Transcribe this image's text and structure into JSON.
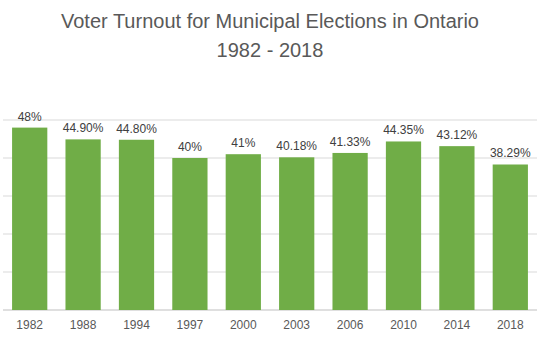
{
  "chart_data": {
    "type": "bar",
    "title": "Voter Turnout for Municipal Elections in Ontario",
    "subtitle": "1982 - 2018",
    "categories": [
      "1982",
      "1988",
      "1994",
      "1997",
      "2000",
      "2003",
      "2006",
      "2010",
      "2014",
      "2018"
    ],
    "values": [
      48,
      44.9,
      44.8,
      40,
      41,
      40.18,
      41.33,
      44.35,
      43.12,
      38.29
    ],
    "value_labels": [
      "48%",
      "44.90%",
      "44.80%",
      "40%",
      "41%",
      "40.18%",
      "41.33%",
      "44.35%",
      "43.12%",
      "38.29%"
    ],
    "color": "#70ad47",
    "ylim": [
      0,
      50
    ],
    "yticks": [
      0,
      10,
      20,
      30,
      40,
      50
    ],
    "grid": true,
    "data_labels": true,
    "tick_labels": "x"
  }
}
